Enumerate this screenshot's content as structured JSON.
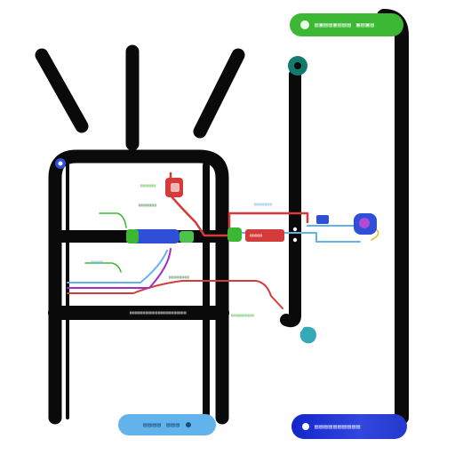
{
  "scene": {
    "icons": [
      "antenna-strokes",
      "window-frame",
      "teal-dot",
      "circuit-chip",
      "blue-connector",
      "purple-node",
      "cyan-blob"
    ]
  },
  "labels": {
    "top_pill": "▤▣▤▤▣▤▤▤ ▣▤▣▤",
    "bottom_left_pill": "▤▤▤▤ ▤▤▤",
    "bottom_right_pill": "▤▤▤▤▤▤▤▤▤▤",
    "red_tag": "▤▤▤▤▤",
    "row_caption": "▤▤▤▤▤▤▤▤▤▤▤▤▤▤▤▤▤▤▤▤▤▤",
    "note_a": "▤▤▤▤▤▤",
    "note_b": "▤▤▤▤▤▤▤",
    "note_c": "▤▤▤▤▤▤▤",
    "note_d": "▤▤▤▤▤▤▤▤",
    "note_e": "▤▤▤▤▤▤▤▤▤",
    "note_f": "▤▤▤▤▤"
  },
  "colors": {
    "stroke": "#0a0a0a",
    "green": "#3db835",
    "red": "#d63b3b",
    "blue": "#2f4fd6",
    "sky": "#62b3ec",
    "purple": "#a12fc6",
    "teal": "#137a6e",
    "cyan": "#36a9b8"
  }
}
